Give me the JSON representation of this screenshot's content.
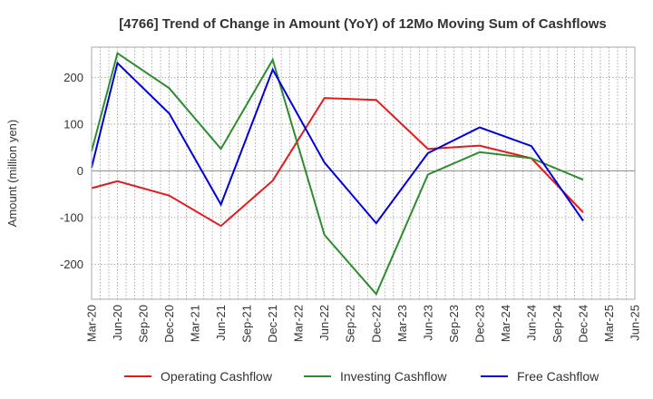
{
  "chart_data": {
    "type": "line",
    "title": "[4766]  Trend of Change in Amount (YoY) of 12Mo Moving Sum of Cashflows",
    "xlabel": "",
    "ylabel": "Amount (million yen)",
    "ylim": [
      -275,
      265
    ],
    "yticks": [
      -200,
      -100,
      0,
      100,
      200
    ],
    "grid": true,
    "legend_position": "bottom",
    "categories": [
      "Mar-20",
      "Jun-20",
      "Sep-20",
      "Dec-20",
      "Mar-21",
      "Jun-21",
      "Sep-21",
      "Dec-21",
      "Mar-22",
      "Jun-22",
      "Sep-22",
      "Dec-22",
      "Mar-23",
      "Jun-23",
      "Sep-23",
      "Dec-23",
      "Mar-24",
      "Jun-24",
      "Sep-24",
      "Dec-24",
      "Mar-25",
      "Jun-25"
    ],
    "x_tick_labels": [
      "Mar-20",
      "Jun-20",
      "Sep-20",
      "Dec-20",
      "Mar-21",
      "Jun-21",
      "Sep-21",
      "Dec-21",
      "Mar-22",
      "Jun-22",
      "Sep-22",
      "Dec-22",
      "Mar-23",
      "Jun-23",
      "Sep-23",
      "Dec-23",
      "Mar-24",
      "Jun-24",
      "Sep-24",
      "Dec-24",
      "Mar-25",
      "Jun-25"
    ],
    "series": [
      {
        "name": "Operating Cashflow",
        "color": "#e41a1c",
        "values": [
          -37,
          -22,
          null,
          -53,
          null,
          -118,
          null,
          -21,
          null,
          156,
          null,
          152,
          null,
          47,
          null,
          54,
          null,
          27,
          null,
          -89,
          null,
          null
        ]
      },
      {
        "name": "Investing Cashflow",
        "color": "#2e8b2e",
        "values": [
          42,
          252,
          null,
          177,
          null,
          47,
          null,
          238,
          null,
          -137,
          null,
          -264,
          null,
          -8,
          null,
          40,
          null,
          27,
          null,
          -19,
          null,
          null
        ]
      },
      {
        "name": "Free Cashflow",
        "color": "#0000dd",
        "values": [
          7,
          231,
          null,
          123,
          null,
          -72,
          null,
          217,
          null,
          18,
          null,
          -112,
          null,
          38,
          null,
          93,
          null,
          53,
          null,
          -107,
          null,
          null
        ]
      }
    ]
  }
}
